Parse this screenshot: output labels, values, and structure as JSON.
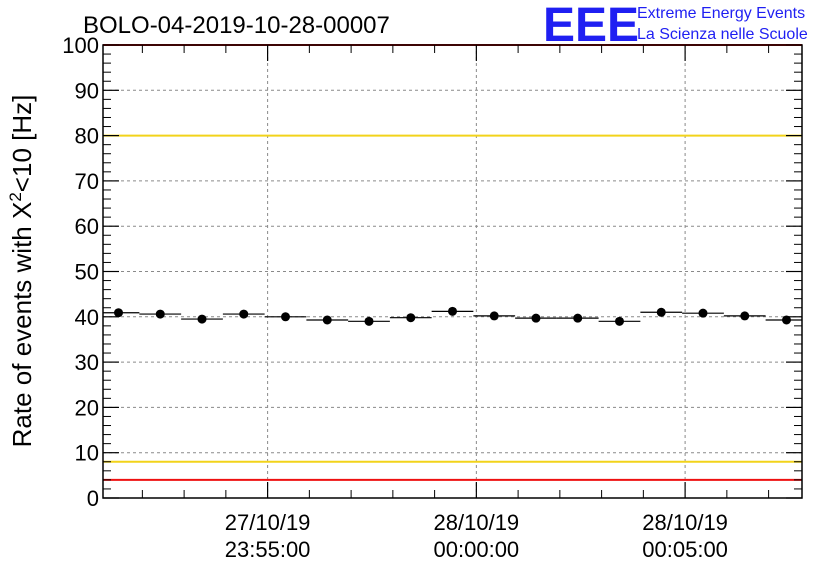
{
  "chart_data": {
    "type": "scatter",
    "title": "BOLO-04-2019-10-28-00007",
    "ylabel_main": "Rate of events with X",
    "ylabel_sup": "2",
    "ylabel_tail": "<10 [Hz]",
    "xlabel": "",
    "ylim": [
      0,
      100
    ],
    "yticks": [
      0,
      10,
      20,
      30,
      40,
      50,
      60,
      70,
      80,
      90,
      100
    ],
    "ytick_labels": [
      "0",
      "10",
      "20",
      "30",
      "40",
      "50",
      "60",
      "70",
      "80",
      "90",
      "100"
    ],
    "xlim": [
      -263,
      323
    ],
    "xticks": [
      -125,
      50,
      225
    ],
    "xtick_labels": [
      {
        "date": "27/10/19",
        "time": "23:55:00"
      },
      {
        "date": "28/10/19",
        "time": "00:00:00"
      },
      {
        "date": "28/10/19",
        "time": "00:05:00"
      }
    ],
    "grid": true,
    "points": {
      "x": [
        -250,
        -215,
        -180,
        -145,
        -110,
        -75,
        -40,
        -5,
        30,
        65,
        100,
        135,
        170,
        205,
        240,
        275,
        310
      ],
      "y": [
        40.9,
        40.6,
        39.5,
        40.6,
        40.0,
        39.3,
        39.0,
        39.8,
        41.2,
        40.2,
        39.7,
        39.7,
        39.0,
        41.0,
        40.8,
        40.2,
        39.3
      ],
      "xerr": 17.5
    },
    "hlines": [
      {
        "y": 80,
        "color": "#f2d31a"
      },
      {
        "y": 8,
        "color": "#f2d31a"
      },
      {
        "y": 4,
        "color": "#ee1111"
      },
      {
        "y": 100,
        "color": "#ee1111"
      }
    ]
  },
  "logo": {
    "mark": "EEE",
    "line1": "Extreme Energy Events",
    "line2": "La Scienza nelle Scuole",
    "color": "#1f1ff2"
  }
}
